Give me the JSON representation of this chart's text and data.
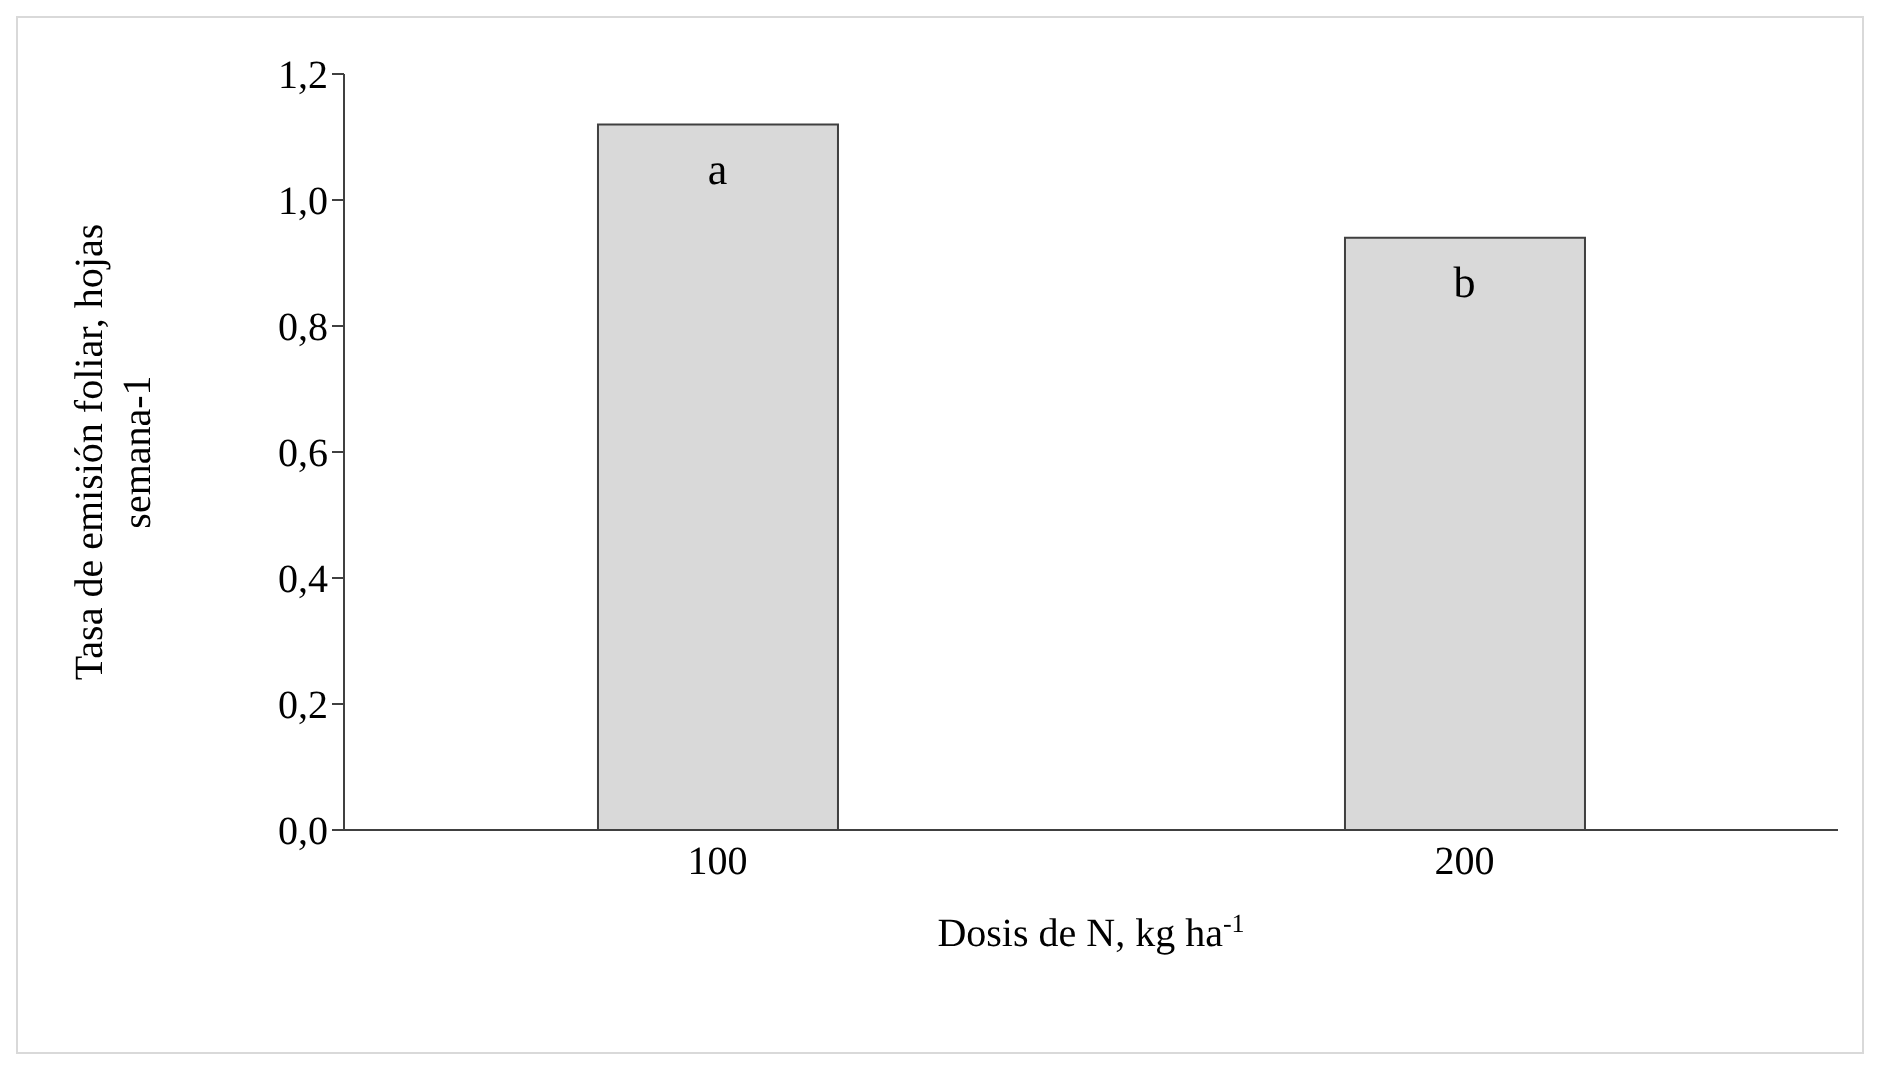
{
  "chart_data": {
    "type": "bar",
    "xlabel": "Dosis de N, kg ha$^{-1}$",
    "ylabel": "Tasa de emisión foliar, hojas semana-1",
    "categories": [
      "100",
      "200"
    ],
    "series": [
      {
        "color": "#d9d9d9",
        "values": [
          1.12,
          0.94
        ]
      }
    ],
    "ylim": [
      0,
      1.2
    ],
    "yticks": [
      {
        "value": 0,
        "label": "0,0"
      },
      {
        "value": 0.2,
        "label": "0,2"
      },
      {
        "value": 0.4,
        "label": "0,4"
      },
      {
        "value": 0.6,
        "label": "0,6"
      },
      {
        "value": 0.8,
        "label": "0,8"
      },
      {
        "value": 1,
        "label": "1,0"
      },
      {
        "value": 1.2,
        "label": "1,2"
      }
    ],
    "annotations": [
      "a",
      "b"
    ],
    "grid": false,
    "legend": false
  }
}
